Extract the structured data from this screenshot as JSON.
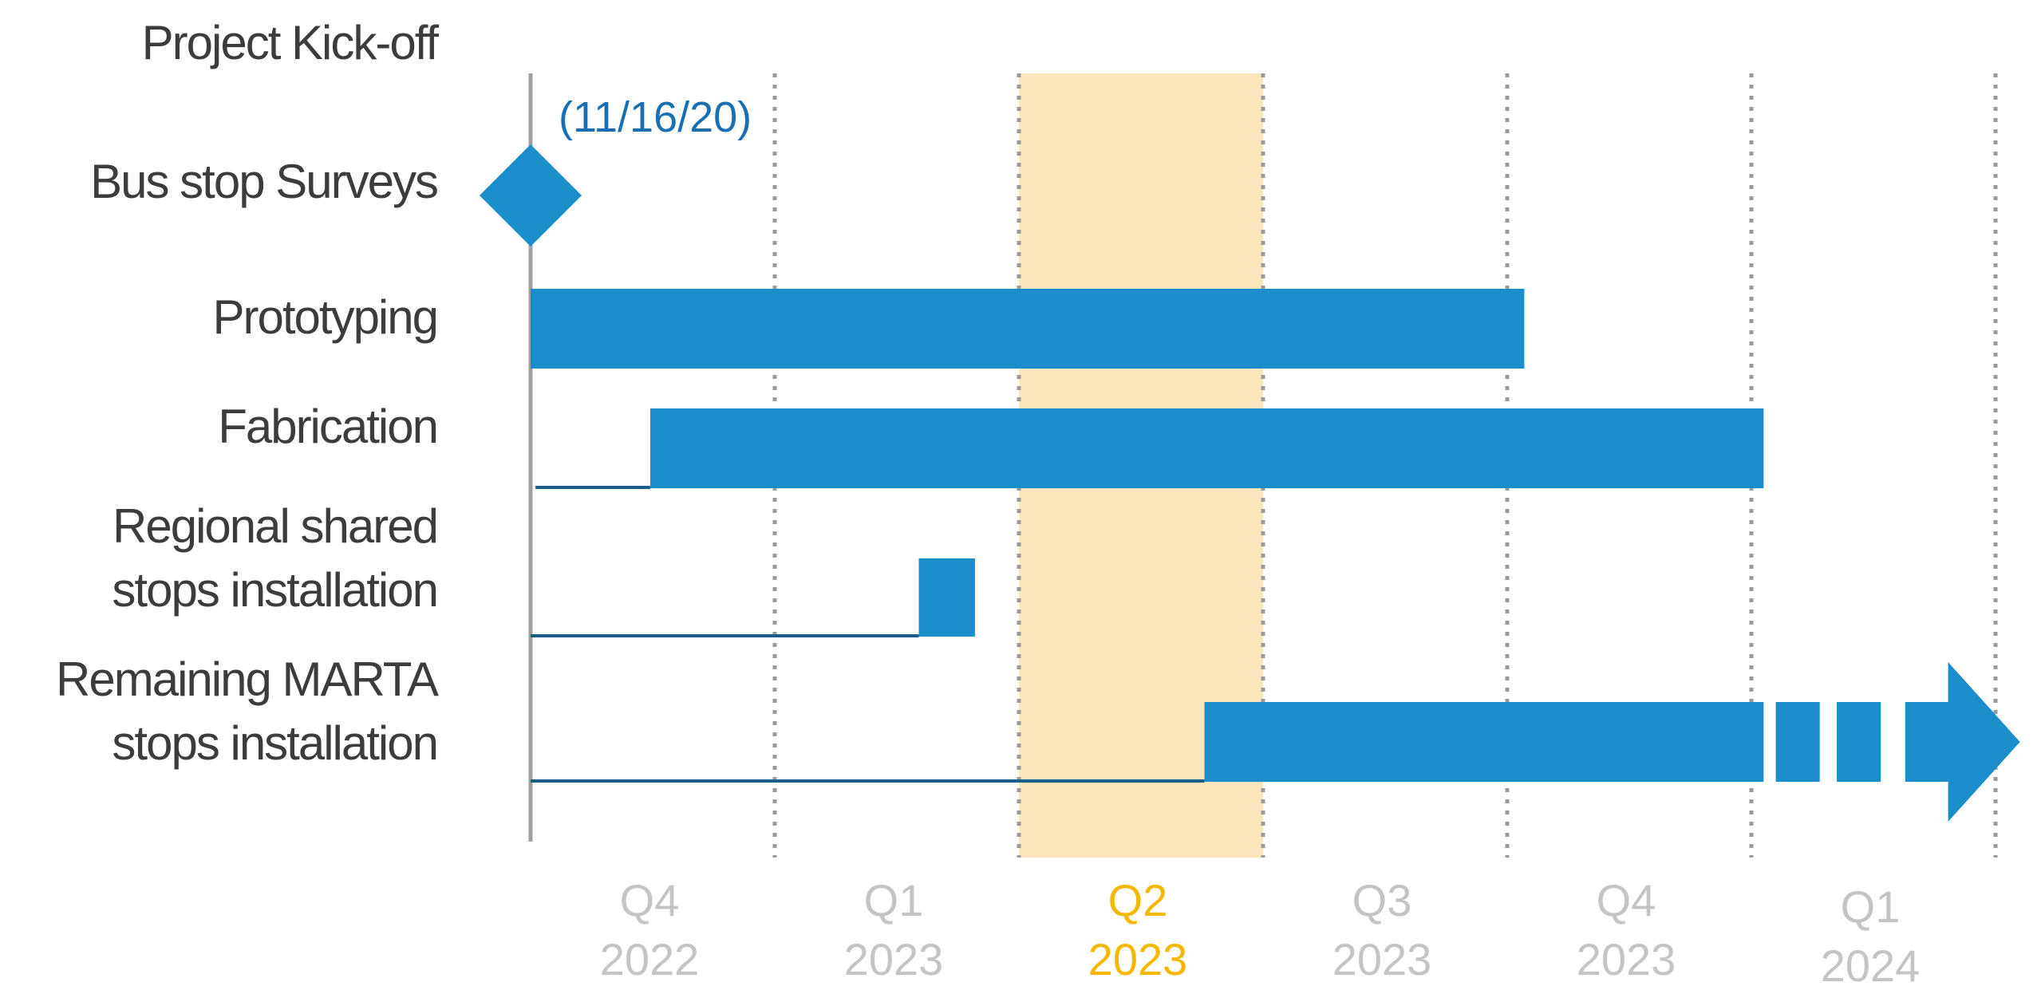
{
  "chart_data": {
    "type": "gantt",
    "colors": {
      "bar": "#1b8dca",
      "connector": "#1a5f8a",
      "highlight_band": "#fde6bc",
      "highlight_text": "#f5b800",
      "tick_text": "#c4c4c4",
      "label_text": "#3c3c3c",
      "annotation_text": "#1a6fb3",
      "gridline": "#9a9a9a",
      "start_line": "#a0a0a0"
    },
    "x_axis": {
      "quarters": [
        {
          "quarter": "Q4",
          "year": "2022"
        },
        {
          "quarter": "Q1",
          "year": "2023"
        },
        {
          "quarter": "Q2",
          "year": "2023",
          "highlighted": true
        },
        {
          "quarter": "Q3",
          "year": "2023"
        },
        {
          "quarter": "Q4",
          "year": "2023"
        },
        {
          "quarter": "Q1",
          "year": "2024"
        }
      ]
    },
    "tasks": [
      {
        "name": "Project Kick-off",
        "lines": [
          "Project Kick-off"
        ]
      },
      {
        "name": "Bus stop Surveys",
        "lines": [
          "Bus stop Surveys"
        ],
        "milestone": true,
        "milestone_at": 0
      },
      {
        "name": "Prototyping",
        "lines": [
          "Prototyping"
        ],
        "start": 0.0,
        "end": 4.07
      },
      {
        "name": "Fabrication",
        "lines": [
          "Fabrication"
        ],
        "lead_from": 0.02,
        "start": 0.49,
        "end": 5.05
      },
      {
        "name": "Regional shared stops installation",
        "lines": [
          "Regional shared",
          "stops installation"
        ],
        "lead_from": 0.0,
        "start": 1.59,
        "end": 1.82
      },
      {
        "name": "Remaining MARTA stops installation",
        "lines": [
          "Remaining MARTA",
          "stops installation"
        ],
        "lead_from": 0.0,
        "start": 2.76,
        "end": 5.05,
        "continues": true,
        "dashes": [
          [
            5.1,
            5.28
          ],
          [
            5.35,
            5.53
          ]
        ],
        "arrow": [
          5.63,
          6.1
        ]
      }
    ],
    "annotations": [
      {
        "text": "(11/16/20)",
        "near_task": "Project Kick-off"
      }
    ]
  }
}
